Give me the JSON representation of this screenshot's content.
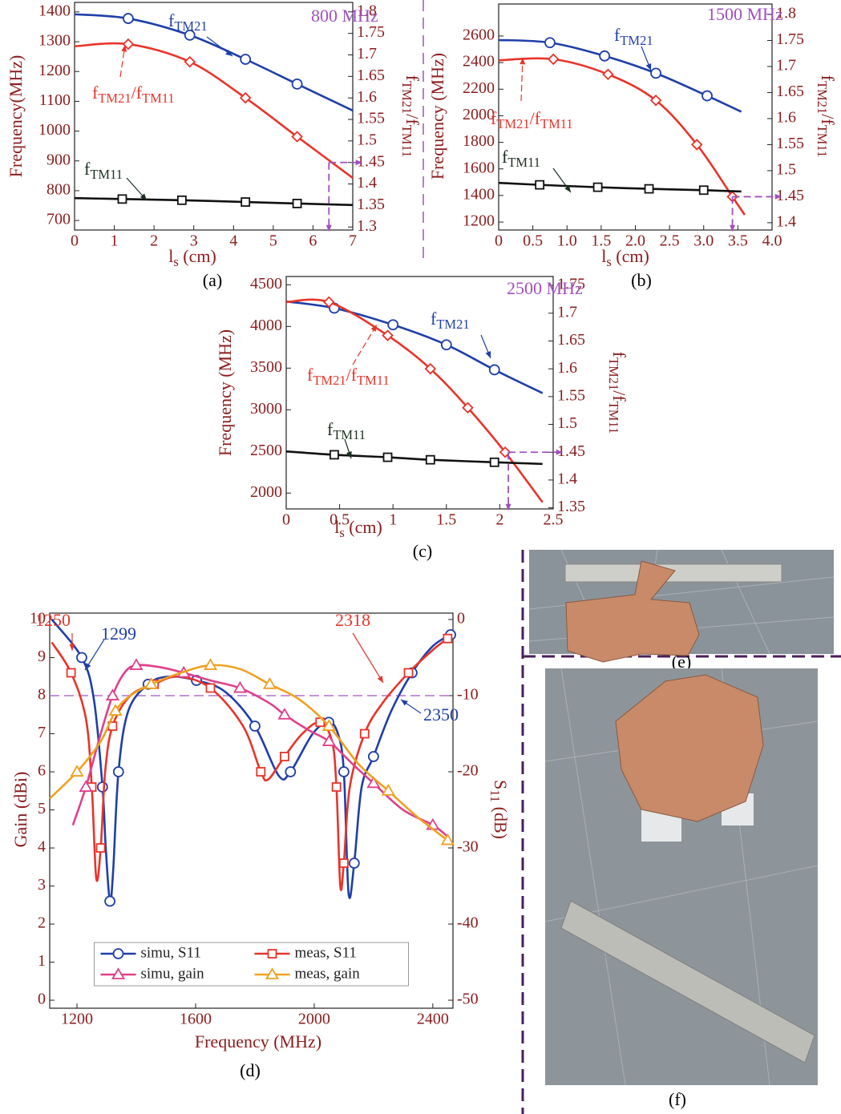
{
  "chart_data": [
    {
      "type": "line",
      "caption": "(a)",
      "x_label": [
        "l",
        "s",
        " (cm)"
      ],
      "y_label": [
        "Frequency(MHz)"
      ],
      "y2_label": [
        "f",
        "TM21",
        "/f",
        "TM11"
      ],
      "xlim": [
        0,
        7
      ],
      "xticks": [
        0,
        1,
        2,
        3,
        4,
        5,
        6,
        7
      ],
      "ylim": [
        668,
        1432
      ],
      "yticks": [
        700,
        800,
        900,
        1000,
        1100,
        1200,
        1300,
        1400
      ],
      "y2lim": [
        1.293,
        1.822
      ],
      "y2ticks": [
        1.3,
        1.35,
        1.4,
        1.45,
        1.5,
        1.55,
        1.6,
        1.65,
        1.7,
        1.75,
        1.8
      ],
      "series": [
        {
          "color": "#1f3fa8",
          "marker": "circle",
          "x": [
            0,
            1.35,
            2.9,
            4.3,
            5.6,
            7
          ],
          "values": [
            1392,
            1378,
            1322,
            1241,
            1158,
            1069
          ]
        },
        {
          "color": "#e8342a",
          "marker": "diamond",
          "axis": "y2",
          "x": [
            0,
            1.35,
            2.9,
            4.3,
            5.6,
            7
          ],
          "values": [
            1.72,
            1.725,
            1.684,
            1.6,
            1.51,
            1.414
          ]
        },
        {
          "color": "#111111",
          "marker": "square",
          "x": [
            0,
            1.2,
            2.7,
            4.3,
            5.6,
            7
          ],
          "values": [
            775,
            772,
            768,
            762,
            757,
            752
          ]
        }
      ],
      "guide": {
        "x": 6.4,
        "y": 1.45
      },
      "annotations": [
        {
          "parts": [
            "800 MHz"
          ],
          "color": "#a050c0"
        },
        {
          "parts": [
            "f",
            "TM21"
          ],
          "color": "#1f3fa8"
        },
        {
          "parts": [
            "f",
            "TM21",
            "/f",
            "TM11"
          ],
          "color": "#e8342a"
        },
        {
          "parts": [
            "f",
            "TM11"
          ],
          "color": "#1a3020"
        }
      ]
    },
    {
      "type": "line",
      "caption": "(b)",
      "x_label": [
        "l",
        "s",
        " (cm)"
      ],
      "y_label": [
        "Frequency (MHz)"
      ],
      "y2_label": [
        "f",
        "TM21",
        "/f",
        "TM11"
      ],
      "xlim": [
        0,
        4
      ],
      "xticks": [
        0,
        0.5,
        {
          "value": 1,
          "label": "1.0"
        },
        1.5,
        {
          "value": 2,
          "label": "2.0"
        },
        2.5,
        {
          "value": 3,
          "label": "3.0"
        },
        3.5,
        {
          "value": 4,
          "label": "4.0"
        }
      ],
      "ylim": [
        1140,
        2841
      ],
      "yticks": [
        1200,
        1400,
        1600,
        1800,
        2000,
        2200,
        2400,
        2600
      ],
      "y2lim": [
        1.386,
        1.82
      ],
      "y2ticks": [
        1.4,
        1.45,
        1.5,
        1.55,
        1.6,
        1.65,
        1.7,
        1.75,
        1.8
      ],
      "series": [
        {
          "color": "#1f3fa8",
          "marker": "circle",
          "x": [
            0,
            0.75,
            1.55,
            2.3,
            3.05,
            3.55
          ],
          "values": [
            2570,
            2550,
            2450,
            2320,
            2150,
            2030
          ]
        },
        {
          "color": "#e8342a",
          "marker": "diamond",
          "axis": "y2",
          "x": [
            0,
            0.8,
            1.6,
            2.3,
            2.9,
            3.42,
            3.6
          ],
          "values": [
            1.712,
            1.714,
            1.685,
            1.635,
            1.55,
            1.45,
            1.415
          ]
        },
        {
          "color": "#111111",
          "marker": "square",
          "x": [
            0,
            0.6,
            1.45,
            2.2,
            3.0,
            3.55
          ],
          "values": [
            1495,
            1480,
            1462,
            1450,
            1440,
            1430
          ]
        }
      ],
      "guide": {
        "x": 3.42,
        "y": 1.45
      },
      "annotations": [
        {
          "parts": [
            "1500 MHz"
          ],
          "color": "#a050c0"
        },
        {
          "parts": [
            "f",
            "TM21"
          ],
          "color": "#1f3fa8"
        },
        {
          "parts": [
            "f",
            "TM21",
            "/f",
            "TM11"
          ],
          "color": "#e8342a"
        },
        {
          "parts": [
            "f",
            "TM11"
          ],
          "color": "#1a3020"
        }
      ]
    },
    {
      "type": "line",
      "caption": "(c)",
      "x_label": [
        "l",
        "s",
        " (cm)"
      ],
      "y_label": [
        "Frequency (MHz)"
      ],
      "y2_label": [
        "f",
        "TM21",
        "/f",
        "TM11"
      ],
      "xlim": [
        0,
        2.5
      ],
      "xticks": [
        0,
        0.5,
        1,
        1.5,
        2,
        2.5
      ],
      "ylim": [
        1810,
        4600
      ],
      "yticks": [
        2000,
        2500,
        3000,
        3500,
        4000,
        4500
      ],
      "y2lim": [
        1.348,
        1.766
      ],
      "y2ticks": [
        1.35,
        1.4,
        1.45,
        1.5,
        1.55,
        1.6,
        1.65,
        1.7,
        1.75
      ],
      "series": [
        {
          "color": "#1f3fa8",
          "marker": "circle",
          "x": [
            0,
            0.45,
            1.0,
            1.5,
            1.95,
            2.4
          ],
          "values": [
            4300,
            4220,
            4020,
            3780,
            3480,
            3200
          ]
        },
        {
          "color": "#e8342a",
          "marker": "diamond",
          "axis": "y2",
          "x": [
            0,
            0.4,
            0.95,
            1.35,
            1.7,
            2.05,
            2.4
          ],
          "values": [
            1.72,
            1.72,
            1.66,
            1.6,
            1.53,
            1.45,
            1.36
          ]
        },
        {
          "color": "#111111",
          "marker": "square",
          "x": [
            0,
            0.45,
            0.95,
            1.35,
            1.95,
            2.4
          ],
          "values": [
            2500,
            2460,
            2430,
            2400,
            2370,
            2350
          ]
        }
      ],
      "guide": {
        "x": 2.08,
        "y": 1.45
      },
      "annotations": [
        {
          "parts": [
            "2500 MHz"
          ],
          "color": "#a050c0"
        },
        {
          "parts": [
            "f",
            "TM21"
          ],
          "color": "#1f3fa8"
        },
        {
          "parts": [
            "f",
            "TM21",
            "/f",
            "TM11"
          ],
          "color": "#e8342a"
        },
        {
          "parts": [
            "f",
            "TM11"
          ],
          "color": "#1a3020"
        }
      ]
    },
    {
      "type": "line",
      "caption": "(d)",
      "x_label": [
        "Frequency (MHz)"
      ],
      "y_label": [
        "Gain (dBi)"
      ],
      "y2_label": [
        "S",
        "11",
        " (dB)"
      ],
      "xlim": [
        1108,
        2468
      ],
      "xticks": [
        1200,
        1600,
        2000,
        2400
      ],
      "ylim": [
        -0.21,
        10.17
      ],
      "yticks": [
        0,
        1,
        2,
        3,
        4,
        5,
        6,
        7,
        8,
        9,
        10
      ],
      "y2lim": [
        -51.05,
        0.84
      ],
      "y2ticks": [
        -50,
        -40,
        -30,
        -20,
        -10,
        0
      ],
      "reference_line": -10,
      "legend": "lower center",
      "series": [
        {
          "name": "simu, S11",
          "color": "#1f3fa8",
          "marker": "circle",
          "axis": "y2",
          "x": [
            1115,
            1216,
            1257,
            1286,
            1297,
            1311,
            1322,
            1340,
            1373,
            1440,
            1508,
            1603,
            1700,
            1800,
            1880,
            1920,
            1995,
            2049,
            2080,
            2100,
            2116,
            2135,
            2160,
            2200,
            2260,
            2330,
            2400,
            2460
          ],
          "values": [
            0,
            -5,
            -10.5,
            -22,
            -30,
            -37,
            -33,
            -20,
            -12,
            -8.5,
            -7.5,
            -8,
            -9.5,
            -14,
            -20.5,
            -20,
            -15,
            -13.5,
            -15,
            -20,
            -36,
            -32,
            -22,
            -18,
            -12,
            -7,
            -3.5,
            -2
          ]
        },
        {
          "name": "meas, S11",
          "color": "#e8342a",
          "marker": "square",
          "axis": "y2",
          "x": [
            1115,
            1180,
            1230,
            1250,
            1265,
            1280,
            1295,
            1320,
            1380,
            1460,
            1540,
            1650,
            1760,
            1820,
            1845,
            1900,
            1960,
            2020,
            2060,
            2075,
            2088,
            2100,
            2120,
            2170,
            2230,
            2318,
            2400,
            2450
          ],
          "values": [
            -3,
            -7,
            -13,
            -22,
            -34,
            -30,
            -20,
            -14,
            -10,
            -8.5,
            -7.5,
            -9,
            -14,
            -20,
            -21,
            -18,
            -15,
            -13.5,
            -16,
            -22,
            -35,
            -32,
            -22,
            -15,
            -11,
            -7,
            -4,
            -2.5
          ]
        },
        {
          "name": "simu, gain",
          "color": "#e0408a",
          "marker": "triangle",
          "x": [
            1186,
            1230,
            1280,
            1320,
            1360,
            1400,
            1480,
            1560,
            1650,
            1750,
            1850,
            1900,
            1980,
            2050,
            2130,
            2200,
            2300,
            2400,
            2450
          ],
          "values": [
            4.6,
            5.6,
            7.0,
            8.0,
            8.6,
            8.8,
            8.75,
            8.6,
            8.4,
            8.2,
            7.8,
            7.5,
            7.1,
            6.8,
            6.2,
            5.7,
            5.0,
            4.6,
            4.3
          ]
        },
        {
          "name": "meas, gain",
          "color": "#f0a020",
          "marker": "triangle",
          "x": [
            1108,
            1200,
            1280,
            1330,
            1380,
            1450,
            1550,
            1650,
            1750,
            1850,
            1950,
            2050,
            2150,
            2250,
            2350,
            2450
          ],
          "values": [
            5.3,
            6.0,
            6.8,
            7.6,
            8.0,
            8.3,
            8.6,
            8.8,
            8.7,
            8.3,
            7.9,
            7.2,
            6.2,
            5.5,
            4.8,
            4.2
          ]
        }
      ],
      "annotations": [
        {
          "parts": [
            "1250"
          ],
          "color": "#e8342a"
        },
        {
          "parts": [
            "1299"
          ],
          "color": "#1f3fa8"
        },
        {
          "parts": [
            "2318"
          ],
          "color": "#e8342a"
        },
        {
          "parts": [
            "2350"
          ],
          "color": "#1f3fa8"
        }
      ]
    }
  ],
  "photos": [
    {
      "caption": "(e)"
    },
    {
      "caption": "(f)"
    }
  ]
}
